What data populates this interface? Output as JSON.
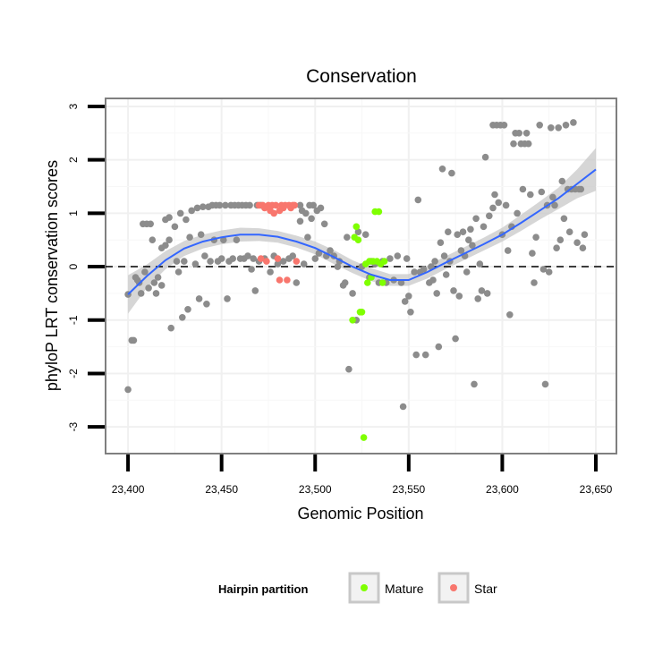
{
  "chart_data": {
    "type": "scatter",
    "title": "Conservation",
    "xlabel": "Genomic Position",
    "ylabel": "phyloP LRT conservation scores",
    "xlim": [
      23388,
      23661
    ],
    "ylim": [
      -3.5,
      3.15
    ],
    "x_ticks": [
      23400,
      23450,
      23500,
      23550,
      23600,
      23650
    ],
    "x_tick_labels": [
      "23,400",
      "23,450",
      "23,500",
      "23,550",
      "23,600",
      "23,650"
    ],
    "y_ticks": [
      -3,
      -2,
      -1,
      0,
      1,
      2,
      3
    ],
    "y_tick_labels": [
      "-3",
      "-2",
      "-1",
      "0",
      "1",
      "2",
      "3"
    ],
    "reference_line": {
      "y": 0,
      "style": "dashed"
    },
    "grid": true,
    "legend": {
      "title": "Hairpin partition",
      "position": "bottom",
      "entries": [
        {
          "label": "Mature",
          "color": "#7fff00"
        },
        {
          "label": "Star",
          "color": "#f8766d"
        }
      ]
    },
    "colors": {
      "other": "#8c8c8c",
      "mature": "#7fff00",
      "star": "#f8766d",
      "smooth": "#3366ff",
      "ribbon": "#c8c8c8"
    },
    "series": [
      {
        "name": "Other",
        "points": [
          [
            23400,
            -0.52
          ],
          [
            23400,
            -2.3
          ],
          [
            23402,
            -1.38
          ],
          [
            23403,
            -1.38
          ],
          [
            23404,
            -0.2
          ],
          [
            23405,
            -0.25
          ],
          [
            23406,
            -0.3
          ],
          [
            23407,
            -0.5
          ],
          [
            23408,
            0.8
          ],
          [
            23409,
            -0.1
          ],
          [
            23410,
            0.8
          ],
          [
            23411,
            -0.4
          ],
          [
            23412,
            0.8
          ],
          [
            23413,
            0.5
          ],
          [
            23414,
            -0.3
          ],
          [
            23415,
            -0.5
          ],
          [
            23416,
            -0.2
          ],
          [
            23418,
            0.35
          ],
          [
            23418,
            -0.35
          ],
          [
            23420,
            0.88
          ],
          [
            23420,
            0.4
          ],
          [
            23422,
            0.92
          ],
          [
            23422,
            0.5
          ],
          [
            23423,
            -1.15
          ],
          [
            23425,
            0.75
          ],
          [
            23426,
            0.1
          ],
          [
            23427,
            -0.1
          ],
          [
            23428,
            1.0
          ],
          [
            23429,
            -0.95
          ],
          [
            23430,
            0.1
          ],
          [
            23431,
            0.88
          ],
          [
            23432,
            -0.8
          ],
          [
            23433,
            0.55
          ],
          [
            23434,
            1.05
          ],
          [
            23436,
            0.05
          ],
          [
            23437,
            1.1
          ],
          [
            23438,
            -0.6
          ],
          [
            23439,
            0.6
          ],
          [
            23440,
            1.12
          ],
          [
            23441,
            0.2
          ],
          [
            23442,
            -0.7
          ],
          [
            23443,
            1.12
          ],
          [
            23444,
            0.1
          ],
          [
            23445,
            1.15
          ],
          [
            23446,
            0.5
          ],
          [
            23447,
            1.15
          ],
          [
            23448,
            0.1
          ],
          [
            23449,
            1.15
          ],
          [
            23450,
            0.15
          ],
          [
            23451,
            0.5
          ],
          [
            23452,
            1.15
          ],
          [
            23453,
            -0.6
          ],
          [
            23454,
            0.1
          ],
          [
            23455,
            1.15
          ],
          [
            23456,
            0.15
          ],
          [
            23457,
            1.15
          ],
          [
            23458,
            0.5
          ],
          [
            23459,
            1.15
          ],
          [
            23460,
            0.15
          ],
          [
            23461,
            1.15
          ],
          [
            23462,
            0.15
          ],
          [
            23463,
            1.15
          ],
          [
            23464,
            0.2
          ],
          [
            23465,
            1.15
          ],
          [
            23466,
            -0.05
          ],
          [
            23467,
            0.15
          ],
          [
            23468,
            -0.45
          ],
          [
            23469,
            1.15
          ],
          [
            23470,
            0.1
          ],
          [
            23471,
            1.15
          ],
          [
            23473,
            0.15
          ],
          [
            23476,
            -0.1
          ],
          [
            23478,
            0.2
          ],
          [
            23480,
            0.05
          ],
          [
            23483,
            0.1
          ],
          [
            23486,
            0.15
          ],
          [
            23488,
            0.2
          ],
          [
            23490,
            -0.3
          ],
          [
            23492,
            1.15
          ],
          [
            23492,
            0.85
          ],
          [
            23493,
            1.05
          ],
          [
            23494,
            0.05
          ],
          [
            23495,
            1.0
          ],
          [
            23496,
            0.55
          ],
          [
            23497,
            1.15
          ],
          [
            23498,
            0.9
          ],
          [
            23499,
            1.15
          ],
          [
            23500,
            0.15
          ],
          [
            23501,
            1.05
          ],
          [
            23502,
            0.25
          ],
          [
            23503,
            1.1
          ],
          [
            23505,
            0.8
          ],
          [
            23506,
            0.2
          ],
          [
            23508,
            0.3
          ],
          [
            23510,
            0.2
          ],
          [
            23512,
            0.0
          ],
          [
            23513,
            0.1
          ],
          [
            23515,
            -0.35
          ],
          [
            23516,
            -0.3
          ],
          [
            23517,
            0.55
          ],
          [
            23518,
            -1.92
          ],
          [
            23520,
            -0.5
          ],
          [
            23522,
            -1.0
          ],
          [
            23523,
            0.65
          ],
          [
            23525,
            0.0
          ],
          [
            23527,
            0.6
          ],
          [
            23529,
            -0.2
          ],
          [
            23530,
            0.1
          ],
          [
            23532,
            0.05
          ],
          [
            23534,
            -0.3
          ],
          [
            23536,
            0.1
          ],
          [
            23538,
            -0.3
          ],
          [
            23540,
            0.15
          ],
          [
            23542,
            -0.25
          ],
          [
            23544,
            0.2
          ],
          [
            23546,
            -0.3
          ],
          [
            23547,
            -2.62
          ],
          [
            23548,
            -0.65
          ],
          [
            23549,
            0.15
          ],
          [
            23550,
            -0.55
          ],
          [
            23551,
            -0.85
          ],
          [
            23553,
            -0.1
          ],
          [
            23554,
            -1.65
          ],
          [
            23555,
            1.25
          ],
          [
            23556,
            -0.1
          ],
          [
            23558,
            -0.05
          ],
          [
            23559,
            -1.65
          ],
          [
            23561,
            -0.3
          ],
          [
            23562,
            0.0
          ],
          [
            23563,
            -0.25
          ],
          [
            23564,
            0.1
          ],
          [
            23565,
            -0.5
          ],
          [
            23566,
            -1.5
          ],
          [
            23567,
            0.45
          ],
          [
            23568,
            1.83
          ],
          [
            23569,
            0.2
          ],
          [
            23570,
            -0.15
          ],
          [
            23571,
            0.65
          ],
          [
            23572,
            0.1
          ],
          [
            23573,
            1.75
          ],
          [
            23574,
            -0.45
          ],
          [
            23575,
            -1.35
          ],
          [
            23576,
            0.6
          ],
          [
            23577,
            -0.55
          ],
          [
            23578,
            0.3
          ],
          [
            23579,
            0.65
          ],
          [
            23580,
            0.2
          ],
          [
            23581,
            -0.1
          ],
          [
            23582,
            0.5
          ],
          [
            23583,
            0.7
          ],
          [
            23584,
            0.4
          ],
          [
            23585,
            -2.2
          ],
          [
            23586,
            0.9
          ],
          [
            23587,
            -0.6
          ],
          [
            23588,
            0.05
          ],
          [
            23589,
            -0.45
          ],
          [
            23590,
            0.75
          ],
          [
            23591,
            2.05
          ],
          [
            23592,
            -0.5
          ],
          [
            23593,
            0.95
          ],
          [
            23595,
            1.1
          ],
          [
            23595,
            2.65
          ],
          [
            23596,
            1.35
          ],
          [
            23597,
            2.65
          ],
          [
            23598,
            1.2
          ],
          [
            23599,
            2.65
          ],
          [
            23600,
            0.6
          ],
          [
            23601,
            2.65
          ],
          [
            23602,
            1.15
          ],
          [
            23603,
            0.3
          ],
          [
            23604,
            -0.9
          ],
          [
            23605,
            0.75
          ],
          [
            23606,
            2.3
          ],
          [
            23607,
            2.5
          ],
          [
            23608,
            1.0
          ],
          [
            23609,
            2.5
          ],
          [
            23610,
            2.3
          ],
          [
            23611,
            1.45
          ],
          [
            23612,
            2.3
          ],
          [
            23613,
            2.5
          ],
          [
            23614,
            2.3
          ],
          [
            23615,
            1.35
          ],
          [
            23616,
            0.25
          ],
          [
            23617,
            -0.3
          ],
          [
            23618,
            0.55
          ],
          [
            23620,
            2.65
          ],
          [
            23621,
            1.4
          ],
          [
            23622,
            -0.05
          ],
          [
            23623,
            -2.2
          ],
          [
            23624,
            1.15
          ],
          [
            23625,
            -0.1
          ],
          [
            23626,
            2.6
          ],
          [
            23627,
            1.3
          ],
          [
            23628,
            1.15
          ],
          [
            23629,
            0.35
          ],
          [
            23630,
            2.6
          ],
          [
            23631,
            0.5
          ],
          [
            23632,
            1.6
          ],
          [
            23633,
            0.9
          ],
          [
            23634,
            2.65
          ],
          [
            23635,
            1.45
          ],
          [
            23636,
            0.65
          ],
          [
            23637,
            1.45
          ],
          [
            23638,
            2.7
          ],
          [
            23639,
            1.45
          ],
          [
            23640,
            0.45
          ],
          [
            23641,
            1.45
          ],
          [
            23642,
            1.45
          ],
          [
            23643,
            0.35
          ],
          [
            23644,
            0.6
          ]
        ]
      },
      {
        "name": "Mature",
        "points": [
          [
            23520,
            -1.0
          ],
          [
            23521,
            0.55
          ],
          [
            23522,
            0.75
          ],
          [
            23523,
            0.5
          ],
          [
            23524,
            -0.85
          ],
          [
            23525,
            -0.85
          ],
          [
            23526,
            -3.2
          ],
          [
            23527,
            0.05
          ],
          [
            23528,
            -0.3
          ],
          [
            23529,
            0.1
          ],
          [
            23530,
            -0.2
          ],
          [
            23531,
            0.1
          ],
          [
            23532,
            1.03
          ],
          [
            23533,
            0.1
          ],
          [
            23534,
            1.03
          ],
          [
            23535,
            0.05
          ],
          [
            23536,
            -0.3
          ],
          [
            23537,
            0.1
          ]
        ]
      },
      {
        "name": "Star",
        "points": [
          [
            23470,
            1.15
          ],
          [
            23471,
            0.15
          ],
          [
            23472,
            1.15
          ],
          [
            23473,
            1.1
          ],
          [
            23474,
            0.1
          ],
          [
            23475,
            1.15
          ],
          [
            23476,
            1.05
          ],
          [
            23477,
            1.15
          ],
          [
            23478,
            1.0
          ],
          [
            23479,
            1.15
          ],
          [
            23480,
            0.15
          ],
          [
            23481,
            1.05
          ],
          [
            23481,
            -0.25
          ],
          [
            23482,
            1.15
          ],
          [
            23483,
            1.1
          ],
          [
            23484,
            1.15
          ],
          [
            23485,
            -0.25
          ],
          [
            23486,
            1.15
          ],
          [
            23487,
            1.1
          ],
          [
            23488,
            1.15
          ],
          [
            23489,
            1.15
          ],
          [
            23490,
            0.1
          ]
        ]
      }
    ],
    "smooth": {
      "x": [
        23400,
        23410,
        23420,
        23430,
        23440,
        23450,
        23460,
        23470,
        23480,
        23490,
        23500,
        23510,
        23520,
        23530,
        23540,
        23550,
        23560,
        23570,
        23580,
        23590,
        23600,
        23610,
        23620,
        23630,
        23640,
        23650
      ],
      "y": [
        -0.52,
        -0.18,
        0.12,
        0.34,
        0.47,
        0.55,
        0.6,
        0.6,
        0.56,
        0.47,
        0.35,
        0.18,
        0.0,
        -0.15,
        -0.25,
        -0.25,
        -0.1,
        0.08,
        0.25,
        0.42,
        0.6,
        0.82,
        1.05,
        1.28,
        1.55,
        1.82
      ],
      "lower": [
        -0.88,
        -0.4,
        -0.05,
        0.2,
        0.34,
        0.42,
        0.47,
        0.48,
        0.45,
        0.36,
        0.23,
        0.05,
        -0.12,
        -0.27,
        -0.36,
        -0.36,
        -0.22,
        -0.04,
        0.13,
        0.3,
        0.47,
        0.67,
        0.88,
        1.08,
        1.28,
        1.42
      ],
      "upper": [
        -0.16,
        0.04,
        0.29,
        0.48,
        0.6,
        0.68,
        0.73,
        0.72,
        0.67,
        0.58,
        0.47,
        0.31,
        0.12,
        -0.03,
        -0.14,
        -0.14,
        0.02,
        0.2,
        0.37,
        0.54,
        0.73,
        0.97,
        1.22,
        1.48,
        1.82,
        2.22
      ]
    }
  }
}
